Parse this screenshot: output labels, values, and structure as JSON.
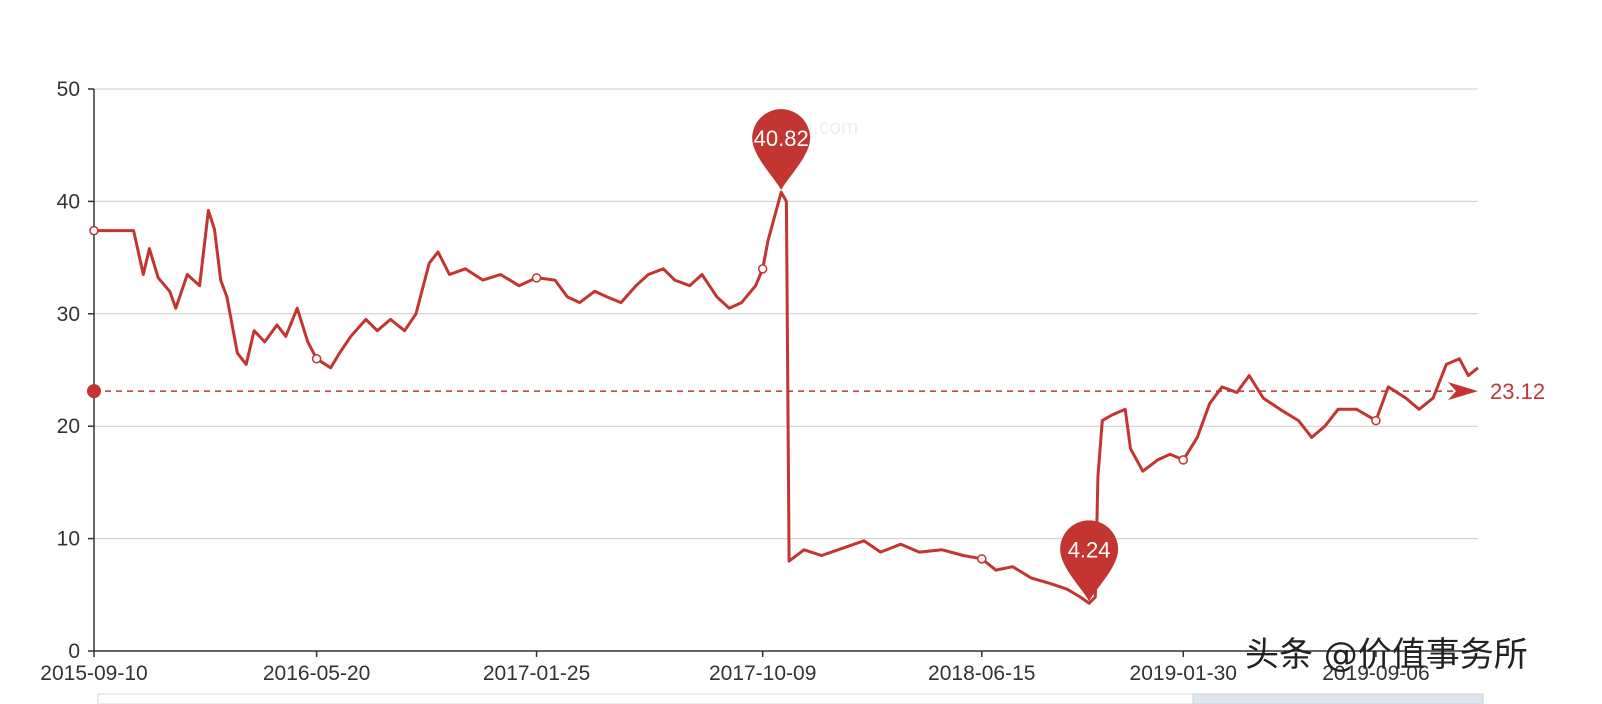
{
  "chart_data": {
    "type": "line",
    "xlabel": "",
    "ylabel": "",
    "ylim": [
      0,
      50
    ],
    "yticks": [
      0,
      10,
      20,
      30,
      40,
      50
    ],
    "xticks": [
      "2015-09-10",
      "2016-05-20",
      "2017-01-25",
      "2017-10-09",
      "2018-06-15",
      "2019-01-30",
      "2019-09-06"
    ],
    "xlim": [
      "2015-09-10",
      "2019-12-31"
    ],
    "grid": "horizontal",
    "color": "#c23531",
    "series": [
      {
        "points": [
          [
            "2015-09-10",
            37.4
          ],
          [
            "2015-10-25",
            37.4
          ],
          [
            "2015-11-05",
            33.5
          ],
          [
            "2015-11-12",
            35.8
          ],
          [
            "2015-11-22",
            33.2
          ],
          [
            "2015-12-05",
            32.0
          ],
          [
            "2015-12-12",
            30.5
          ],
          [
            "2015-12-25",
            33.5
          ],
          [
            "2016-01-08",
            32.5
          ],
          [
            "2016-01-18",
            39.2
          ],
          [
            "2016-01-25",
            37.5
          ],
          [
            "2016-02-01",
            33.0
          ],
          [
            "2016-02-08",
            31.5
          ],
          [
            "2016-02-20",
            26.5
          ],
          [
            "2016-03-01",
            25.5
          ],
          [
            "2016-03-10",
            28.5
          ],
          [
            "2016-03-22",
            27.5
          ],
          [
            "2016-04-05",
            29.0
          ],
          [
            "2016-04-15",
            28.0
          ],
          [
            "2016-04-28",
            30.5
          ],
          [
            "2016-05-10",
            27.5
          ],
          [
            "2016-05-20",
            26.0
          ],
          [
            "2016-06-05",
            25.2
          ],
          [
            "2016-06-15",
            26.5
          ],
          [
            "2016-06-28",
            28.0
          ],
          [
            "2016-07-15",
            29.5
          ],
          [
            "2016-07-28",
            28.5
          ],
          [
            "2016-08-12",
            29.5
          ],
          [
            "2016-08-28",
            28.5
          ],
          [
            "2016-09-10",
            30.0
          ],
          [
            "2016-09-25",
            34.5
          ],
          [
            "2016-10-05",
            35.5
          ],
          [
            "2016-10-18",
            33.5
          ],
          [
            "2016-11-05",
            34.0
          ],
          [
            "2016-11-25",
            33.0
          ],
          [
            "2016-12-15",
            33.5
          ],
          [
            "2017-01-05",
            32.5
          ],
          [
            "2017-01-25",
            33.2
          ],
          [
            "2017-02-15",
            33.0
          ],
          [
            "2017-03-01",
            31.5
          ],
          [
            "2017-03-15",
            31.0
          ],
          [
            "2017-04-01",
            32.0
          ],
          [
            "2017-04-15",
            31.5
          ],
          [
            "2017-05-01",
            31.0
          ],
          [
            "2017-05-18",
            32.5
          ],
          [
            "2017-06-01",
            33.5
          ],
          [
            "2017-06-18",
            34.0
          ],
          [
            "2017-07-01",
            33.0
          ],
          [
            "2017-07-18",
            32.5
          ],
          [
            "2017-08-01",
            33.5
          ],
          [
            "2017-08-18",
            31.5
          ],
          [
            "2017-09-01",
            30.5
          ],
          [
            "2017-09-15",
            31.0
          ],
          [
            "2017-10-01",
            32.5
          ],
          [
            "2017-10-09",
            34.0
          ],
          [
            "2017-10-15",
            36.5
          ],
          [
            "2017-10-22",
            38.5
          ],
          [
            "2017-10-30",
            40.82
          ],
          [
            "2017-11-05",
            40.0
          ],
          [
            "2017-11-08",
            8.0
          ],
          [
            "2017-11-25",
            9.0
          ],
          [
            "2017-12-15",
            8.5
          ],
          [
            "2018-01-10",
            9.2
          ],
          [
            "2018-02-01",
            9.8
          ],
          [
            "2018-02-20",
            8.8
          ],
          [
            "2018-03-15",
            9.5
          ],
          [
            "2018-04-05",
            8.8
          ],
          [
            "2018-05-01",
            9.0
          ],
          [
            "2018-05-25",
            8.5
          ],
          [
            "2018-06-15",
            8.2
          ],
          [
            "2018-07-01",
            7.2
          ],
          [
            "2018-07-20",
            7.5
          ],
          [
            "2018-08-10",
            6.5
          ],
          [
            "2018-09-01",
            6.0
          ],
          [
            "2018-09-20",
            5.5
          ],
          [
            "2018-10-05",
            4.8
          ],
          [
            "2018-10-15",
            4.24
          ],
          [
            "2018-10-22",
            4.8
          ],
          [
            "2018-10-25",
            15.5
          ],
          [
            "2018-10-30",
            20.5
          ],
          [
            "2018-11-10",
            21.0
          ],
          [
            "2018-11-25",
            21.5
          ],
          [
            "2018-12-01",
            18.0
          ],
          [
            "2018-12-15",
            16.0
          ],
          [
            "2019-01-01",
            17.0
          ],
          [
            "2019-01-15",
            17.5
          ],
          [
            "2019-01-30",
            17.0
          ],
          [
            "2019-02-15",
            19.0
          ],
          [
            "2019-03-01",
            22.0
          ],
          [
            "2019-03-15",
            23.5
          ],
          [
            "2019-04-01",
            23.0
          ],
          [
            "2019-04-15",
            24.5
          ],
          [
            "2019-05-01",
            22.5
          ],
          [
            "2019-05-20",
            21.5
          ],
          [
            "2019-06-10",
            20.5
          ],
          [
            "2019-06-25",
            19.0
          ],
          [
            "2019-07-10",
            20.0
          ],
          [
            "2019-07-25",
            21.5
          ],
          [
            "2019-08-15",
            21.5
          ],
          [
            "2019-09-06",
            20.5
          ],
          [
            "2019-09-20",
            23.5
          ],
          [
            "2019-10-10",
            22.5
          ],
          [
            "2019-10-25",
            21.5
          ],
          [
            "2019-11-10",
            22.5
          ],
          [
            "2019-11-25",
            25.5
          ],
          [
            "2019-12-10",
            26.0
          ],
          [
            "2019-12-20",
            24.5
          ],
          [
            "2019-12-31",
            25.2
          ]
        ],
        "symbol_dates": [
          "2015-09-10",
          "2016-05-20",
          "2017-01-25",
          "2017-10-09",
          "2018-06-15",
          "2019-01-30",
          "2019-09-06"
        ]
      }
    ],
    "mark_points": [
      {
        "label": "40.82",
        "date": "2017-10-30",
        "value": 40.82
      },
      {
        "label": "4.24",
        "date": "2018-10-15",
        "value": 4.24
      }
    ],
    "mark_line": {
      "label": "23.12",
      "value": 23.12,
      "style": "dashed"
    }
  },
  "watermark": {
    "text": "头条 @价值事务所"
  },
  "faint_watermark": {
    "text": "qiu.com"
  }
}
